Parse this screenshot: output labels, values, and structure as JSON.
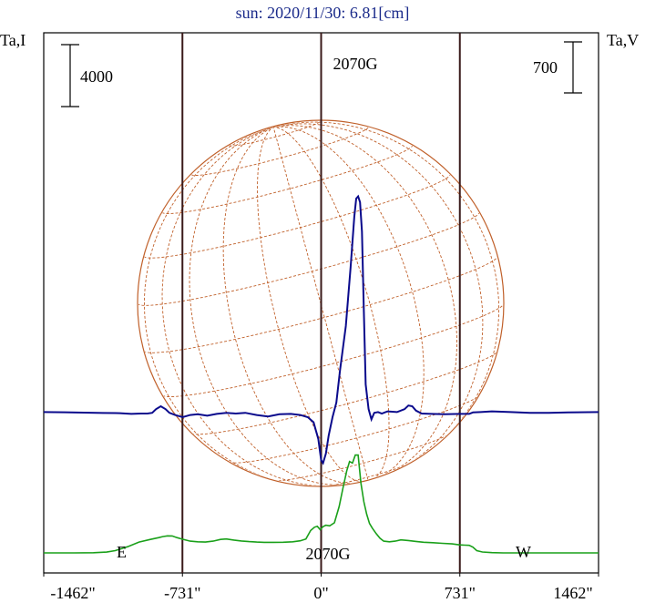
{
  "chart_data": {
    "type": "line",
    "title": "sun: 2020/11/30: 6.81[cm]",
    "left_axis_label": "Ta,I",
    "right_axis_label": "Ta,V",
    "scale_left_label": "4000",
    "scale_right_label": "700",
    "x_tick_labels": [
      "-1462\"",
      "-731\"",
      "0\"",
      "731\"",
      "1462\""
    ],
    "x_ticks": [
      -1462,
      -731,
      0,
      731,
      1462
    ],
    "xlim": [
      -1462,
      1462
    ],
    "limb_markers": [
      -731,
      0,
      731
    ],
    "east_label": "E",
    "west_label": "W",
    "peak_label_top": "2070G",
    "peak_label_bottom": "2070G",
    "colors": {
      "intensity": "#1aa01a",
      "polarization": "#0a0a8c",
      "solar_grid": "#c0602a",
      "limb_lines": "#3a1a1a",
      "title": "#1a2a8a"
    },
    "series": [
      {
        "id": "intensity",
        "x": [
          -1462,
          -1300,
          -1200,
          -1130,
          -1085,
          -1020,
          -960,
          -900,
          -855,
          -835,
          -810,
          -785,
          -760,
          -730,
          -690,
          -650,
          -610,
          -570,
          -530,
          -500,
          -460,
          -420,
          -380,
          -340,
          -300,
          -250,
          -200,
          -150,
          -110,
          -80,
          -55,
          -35,
          -20,
          -5,
          10,
          25,
          45,
          70,
          95,
          115,
          135,
          150,
          165,
          180,
          195,
          210,
          225,
          240,
          255,
          270,
          290,
          310,
          330,
          360,
          390,
          420,
          460,
          500,
          540,
          590,
          640,
          690,
          730,
          760,
          780,
          800,
          820,
          850,
          900,
          960,
          1020,
          1100,
          1200,
          1300,
          1462
        ],
        "y": [
          0,
          0,
          10,
          50,
          150,
          400,
          700,
          870,
          990,
          1050,
          1100,
          1095,
          990,
          880,
          760,
          720,
          700,
          760,
          870,
          900,
          830,
          770,
          730,
          700,
          680,
          680,
          690,
          720,
          780,
          900,
          1450,
          1660,
          1720,
          1500,
          1700,
          1790,
          1750,
          1950,
          3000,
          4200,
          5300,
          5900,
          5800,
          6320,
          6320,
          4500,
          3300,
          2500,
          1900,
          1600,
          1250,
          950,
          760,
          720,
          760,
          840,
          800,
          740,
          690,
          660,
          620,
          580,
          520,
          500,
          490,
          370,
          150,
          60,
          15,
          0,
          0,
          0,
          0,
          0,
          0
        ]
      },
      {
        "id": "polarization",
        "x": [
          -1462,
          -1350,
          -1250,
          -1150,
          -1060,
          -1000,
          -950,
          -915,
          -890,
          -870,
          -845,
          -820,
          -800,
          -770,
          -730,
          -690,
          -650,
          -600,
          -550,
          -500,
          -450,
          -400,
          -340,
          -280,
          -220,
          -160,
          -110,
          -70,
          -40,
          -15,
          0,
          10,
          25,
          40,
          60,
          80,
          100,
          130,
          155,
          175,
          185,
          195,
          205,
          215,
          225,
          235,
          250,
          265,
          280,
          300,
          320,
          350,
          400,
          440,
          460,
          480,
          500,
          530,
          580,
          650,
          731,
          780,
          800,
          840,
          900,
          1000,
          1100,
          1200,
          1300,
          1462
        ],
        "y": [
          20,
          18,
          12,
          8,
          5,
          -5,
          0,
          0,
          10,
          60,
          100,
          60,
          10,
          -20,
          -50,
          -20,
          -10,
          -30,
          -5,
          10,
          0,
          10,
          -20,
          -40,
          -10,
          -5,
          -20,
          -50,
          -120,
          -350,
          -640,
          -680,
          -550,
          -300,
          -50,
          150,
          600,
          1200,
          2000,
          2700,
          2950,
          2980,
          2900,
          2500,
          1400,
          400,
          60,
          -80,
          10,
          20,
          0,
          30,
          20,
          60,
          110,
          100,
          40,
          0,
          -5,
          -10,
          -5,
          -5,
          15,
          20,
          30,
          20,
          10,
          10,
          15,
          20
        ],
        "ylim": [
          -800,
          3200
        ]
      }
    ],
    "ylim_intensity": [
      -400,
      7000
    ]
  }
}
